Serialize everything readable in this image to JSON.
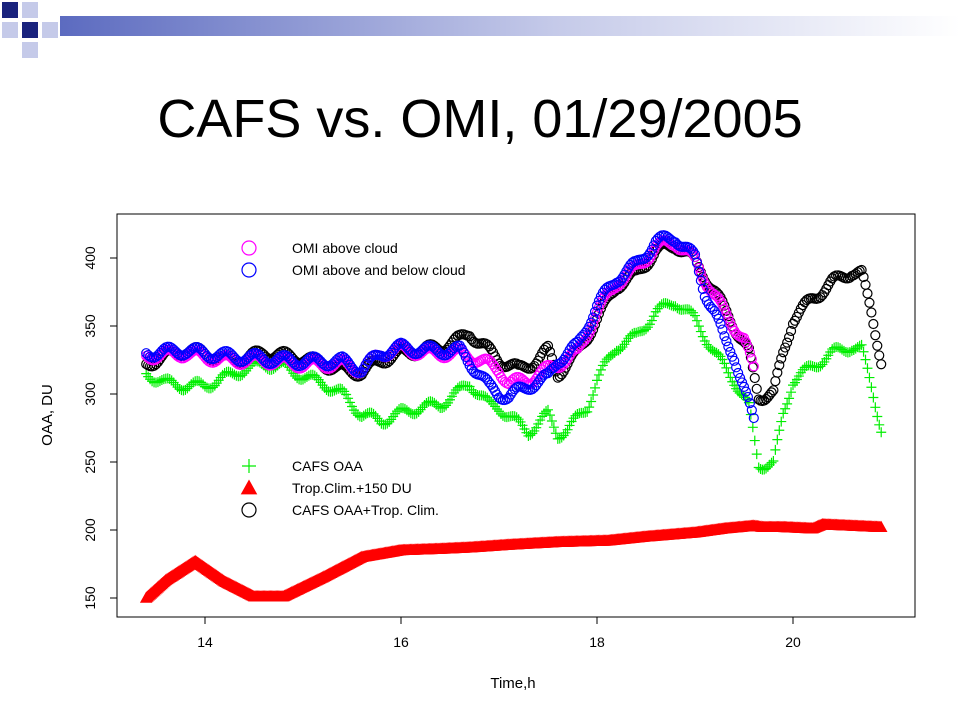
{
  "slide": {
    "title": "CAFS vs. OMI, 01/29/2005",
    "header_colors": [
      "#1a237e",
      "#5c6bc0",
      "#c5cae9",
      "#ffffff"
    ]
  },
  "chart_data": {
    "type": "scatter",
    "title": "CAFS vs. OMI, 01/29/2005",
    "xlabel": "Time,h",
    "ylabel": "OAA, DU",
    "xlim": [
      13.1,
      21.3
    ],
    "ylim": [
      143,
      430
    ],
    "xticks": [
      14,
      16,
      18,
      20
    ],
    "yticks": [
      150,
      200,
      250,
      300,
      350,
      400
    ],
    "grid": false,
    "series": [
      {
        "name": "CAFS OAA",
        "marker": "plus",
        "color": "#00ee00",
        "points": [
          [
            13.4,
            315
          ],
          [
            13.6,
            308
          ],
          [
            13.8,
            306
          ],
          [
            14.0,
            306
          ],
          [
            14.2,
            312
          ],
          [
            14.4,
            318
          ],
          [
            14.6,
            322
          ],
          [
            14.8,
            320
          ],
          [
            15.0,
            313
          ],
          [
            15.2,
            308
          ],
          [
            15.4,
            300
          ],
          [
            15.6,
            285
          ],
          [
            15.8,
            280
          ],
          [
            16.0,
            286
          ],
          [
            16.2,
            290
          ],
          [
            16.4,
            292
          ],
          [
            16.6,
            302
          ],
          [
            16.7,
            308
          ],
          [
            16.8,
            300
          ],
          [
            16.9,
            292
          ],
          [
            17.0,
            290
          ],
          [
            17.2,
            278
          ],
          [
            17.3,
            272
          ],
          [
            17.5,
            285
          ],
          [
            17.6,
            270
          ],
          [
            17.7,
            274
          ],
          [
            17.9,
            290
          ],
          [
            18.0,
            310
          ],
          [
            18.2,
            335
          ],
          [
            18.4,
            342
          ],
          [
            18.6,
            360
          ],
          [
            18.8,
            368
          ],
          [
            19.0,
            355
          ],
          [
            19.2,
            330
          ],
          [
            19.4,
            310
          ],
          [
            19.55,
            290
          ],
          [
            19.65,
            248
          ],
          [
            19.8,
            248
          ],
          [
            19.9,
            285
          ],
          [
            20.0,
            310
          ],
          [
            20.2,
            320
          ],
          [
            20.4,
            330
          ],
          [
            20.6,
            335
          ],
          [
            20.7,
            333
          ],
          [
            20.8,
            305
          ],
          [
            20.9,
            275
          ]
        ]
      },
      {
        "name": "Trop.Clim.+150 DU",
        "marker": "triangle",
        "color": "#ff0000",
        "points": [
          [
            13.4,
            150
          ],
          [
            13.6,
            163
          ],
          [
            13.9,
            177
          ],
          [
            14.2,
            162
          ],
          [
            14.5,
            151
          ],
          [
            14.8,
            151
          ],
          [
            15.2,
            165
          ],
          [
            15.6,
            180
          ],
          [
            16.0,
            185
          ],
          [
            16.4,
            186
          ],
          [
            16.7,
            187
          ],
          [
            17.1,
            189
          ],
          [
            17.6,
            191
          ],
          [
            18.1,
            192
          ],
          [
            18.5,
            195
          ],
          [
            19.0,
            198
          ],
          [
            19.3,
            201
          ],
          [
            19.6,
            203
          ],
          [
            19.7,
            202
          ],
          [
            19.9,
            202
          ],
          [
            20.2,
            201
          ],
          [
            20.3,
            204
          ],
          [
            20.6,
            203
          ],
          [
            20.9,
            202
          ]
        ]
      },
      {
        "name": "CAFS OAA+Trop. Clim.",
        "marker": "circle",
        "color": "#000000",
        "points": [
          [
            13.4,
            322
          ],
          [
            13.6,
            328
          ],
          [
            13.8,
            332
          ],
          [
            14.0,
            330
          ],
          [
            14.2,
            325
          ],
          [
            14.4,
            326
          ],
          [
            14.6,
            330
          ],
          [
            14.8,
            328
          ],
          [
            15.0,
            326
          ],
          [
            15.2,
            322
          ],
          [
            15.4,
            318
          ],
          [
            15.6,
            316
          ],
          [
            15.8,
            325
          ],
          [
            16.0,
            330
          ],
          [
            16.2,
            332
          ],
          [
            16.4,
            334
          ],
          [
            16.6,
            340
          ],
          [
            16.7,
            345
          ],
          [
            16.8,
            338
          ],
          [
            17.0,
            325
          ],
          [
            17.2,
            318
          ],
          [
            17.4,
            325
          ],
          [
            17.5,
            332
          ],
          [
            17.6,
            315
          ],
          [
            17.8,
            330
          ],
          [
            18.0,
            355
          ],
          [
            18.2,
            380
          ],
          [
            18.4,
            388
          ],
          [
            18.6,
            405
          ],
          [
            18.8,
            410
          ],
          [
            19.0,
            398
          ],
          [
            19.2,
            375
          ],
          [
            19.4,
            350
          ],
          [
            19.55,
            330
          ],
          [
            19.65,
            298
          ],
          [
            19.8,
            300
          ],
          [
            19.9,
            330
          ],
          [
            20.0,
            355
          ],
          [
            20.2,
            370
          ],
          [
            20.4,
            382
          ],
          [
            20.6,
            390
          ],
          [
            20.7,
            388
          ],
          [
            20.8,
            360
          ],
          [
            20.9,
            325
          ]
        ]
      },
      {
        "name": "OMI above cloud",
        "marker": "circle",
        "color": "#ff00ff",
        "points": [
          [
            13.4,
            328
          ],
          [
            13.8,
            330
          ],
          [
            14.2,
            325
          ],
          [
            14.6,
            325
          ],
          [
            15.0,
            322
          ],
          [
            15.4,
            322
          ],
          [
            15.6,
            318
          ],
          [
            15.8,
            330
          ],
          [
            16.0,
            333
          ],
          [
            16.3,
            330
          ],
          [
            16.6,
            330
          ],
          [
            16.8,
            325
          ],
          [
            17.0,
            318
          ],
          [
            17.1,
            308
          ],
          [
            17.3,
            310
          ],
          [
            17.6,
            322
          ],
          [
            17.8,
            330
          ],
          [
            18.0,
            360
          ],
          [
            18.2,
            382
          ],
          [
            18.4,
            392
          ],
          [
            18.6,
            408
          ],
          [
            18.8,
            412
          ],
          [
            19.0,
            398
          ],
          [
            19.2,
            372
          ],
          [
            19.3,
            360
          ],
          [
            19.5,
            340
          ],
          [
            19.6,
            318
          ]
        ]
      },
      {
        "name": "OMI above and below cloud",
        "marker": "circle",
        "color": "#0000ff",
        "points": [
          [
            13.4,
            330
          ],
          [
            13.8,
            332
          ],
          [
            14.2,
            328
          ],
          [
            14.6,
            326
          ],
          [
            15.0,
            324
          ],
          [
            15.4,
            324
          ],
          [
            15.6,
            318
          ],
          [
            15.8,
            330
          ],
          [
            16.0,
            334
          ],
          [
            16.3,
            332
          ],
          [
            16.6,
            332
          ],
          [
            16.8,
            315
          ],
          [
            16.9,
            305
          ],
          [
            17.0,
            300
          ],
          [
            17.1,
            298
          ],
          [
            17.3,
            306
          ],
          [
            17.5,
            312
          ],
          [
            17.6,
            325
          ],
          [
            17.8,
            335
          ],
          [
            18.0,
            365
          ],
          [
            18.2,
            385
          ],
          [
            18.4,
            395
          ],
          [
            18.6,
            412
          ],
          [
            18.8,
            415
          ],
          [
            19.0,
            400
          ],
          [
            19.1,
            375
          ],
          [
            19.2,
            360
          ],
          [
            19.3,
            340
          ],
          [
            19.4,
            328
          ],
          [
            19.6,
            280
          ]
        ]
      }
    ],
    "legends": [
      {
        "position": "top-left",
        "entries": [
          "OMI above cloud",
          "OMI above and below cloud"
        ]
      },
      {
        "position": "center-left",
        "entries": [
          "CAFS OAA",
          "Trop.Clim.+150 DU",
          "CAFS OAA+Trop. Clim."
        ]
      }
    ]
  }
}
